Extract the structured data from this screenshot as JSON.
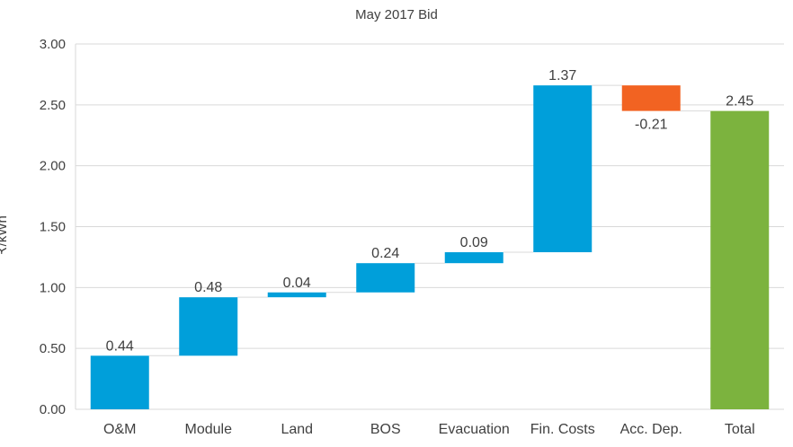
{
  "chart_data": {
    "type": "bar",
    "subtype": "waterfall",
    "title": "May 2017 Bid",
    "xlabel": "",
    "ylabel": "₹/kWh",
    "ylim": [
      0,
      3
    ],
    "yticks": [
      "0.00",
      "0.50",
      "1.00",
      "1.50",
      "2.00",
      "2.50",
      "3.00"
    ],
    "grid": true,
    "legend": "none",
    "categories": [
      "O&M",
      "Module",
      "Land",
      "BOS",
      "Evacuation",
      "Fin. Costs",
      "Acc. Dep.",
      "Total"
    ],
    "values": [
      0.44,
      0.48,
      0.04,
      0.24,
      0.09,
      1.37,
      -0.21,
      2.45
    ],
    "labels": [
      "0.44",
      "0.48",
      "0.04",
      "0.24",
      "0.09",
      "1.37",
      "-0.21",
      "2.45"
    ],
    "kinds": [
      "increase",
      "increase",
      "increase",
      "increase",
      "increase",
      "increase",
      "decrease",
      "total"
    ],
    "colors": {
      "increase": "#009FDA",
      "decrease": "#F26322",
      "total": "#7CB33E",
      "grid": "#D9D9D9",
      "connector": "#D9D9D9",
      "text": "#404040"
    }
  }
}
